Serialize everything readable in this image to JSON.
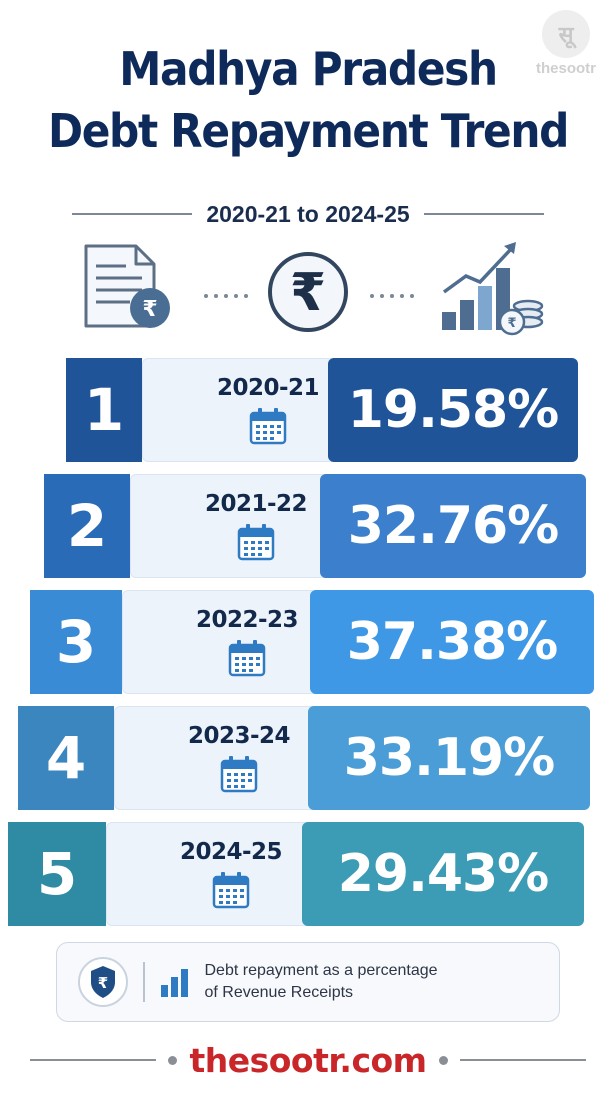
{
  "watermark": {
    "seal_text": "सूत्र",
    "brand": "thesootr"
  },
  "header": {
    "title_line1": "Madhya Pradesh",
    "title_line2": "Debt Repayment Trend",
    "subtitle": "2020-21 to 2024-25"
  },
  "icons": [
    "document-rupee-icon",
    "rupee-circle-icon",
    "growth-chart-coins-icon"
  ],
  "rows": [
    {
      "rank": "1",
      "year": "2020-21",
      "value": "19.58%",
      "number_color": "#1f5499",
      "value_color": "#1f5499"
    },
    {
      "rank": "2",
      "year": "2021-22",
      "value": "32.76%",
      "number_color": "#2a6bb8",
      "value_color": "#3b7fcd"
    },
    {
      "rank": "3",
      "year": "2022-23",
      "value": "37.38%",
      "number_color": "#3a8bd6",
      "value_color": "#3f98e6"
    },
    {
      "rank": "4",
      "year": "2023-24",
      "value": "33.19%",
      "number_color": "#3b86bf",
      "value_color": "#4a9dd6"
    },
    {
      "rank": "5",
      "year": "2024-25",
      "value": "29.43%",
      "number_color": "#2f8aa3",
      "value_color": "#3c9bb5"
    }
  ],
  "note": {
    "text": "Debt repayment as a percentage of Revenue Receipts"
  },
  "footer": {
    "brand": "thesootr.com"
  }
}
